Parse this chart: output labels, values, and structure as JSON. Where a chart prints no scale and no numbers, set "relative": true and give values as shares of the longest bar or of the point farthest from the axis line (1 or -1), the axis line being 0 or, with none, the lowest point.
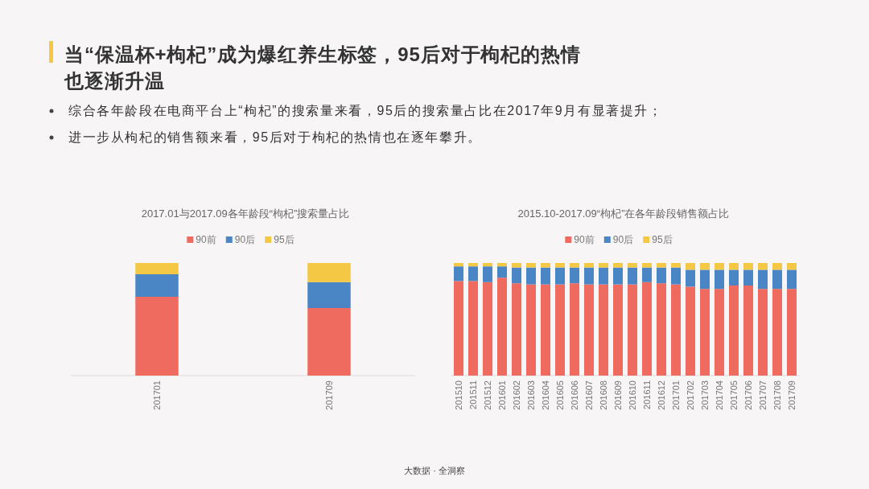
{
  "chart_data": [
    {
      "type": "other",
      "title": "当“保温杯+枸杞”成为爆红养生标签，95后对于枸杞的热情也逐渐升温",
      "annotations": [
        "综合各年龄段在电商平台上“枸杞”的搜索量来看，95后的搜索量占比在2017年9月有显著提升；",
        "进一步从枸杞的销售额来看，95后对于枸杞的热情也在逐年攀升。",
        "大数据 · 全洞察"
      ]
    },
    {
      "type": "bar",
      "title": "2017.01与2017.09各年龄段“枸杞”搜索量占比",
      "categories": [
        "201701",
        "201709"
      ],
      "stacked": true,
      "relative": true,
      "legend": "top",
      "series": [
        {
          "name": "90前",
          "color": "#ef6b5f",
          "values": [
            0.7,
            0.6
          ]
        },
        {
          "name": "90后",
          "color": "#4a86c5",
          "values": [
            0.2,
            0.23
          ]
        },
        {
          "name": "95后",
          "color": "#f4c844",
          "values": [
            0.1,
            0.17
          ]
        }
      ]
    },
    {
      "type": "bar",
      "title": "2015.10-2017.09“枸杞”在各年龄段销售额占比",
      "categories": [
        "201510",
        "201511",
        "201512",
        "201601",
        "201602",
        "201603",
        "201604",
        "201605",
        "201606",
        "201607",
        "201608",
        "201609",
        "201610",
        "201611",
        "201612",
        "201701",
        "201702",
        "201703",
        "201704",
        "201705",
        "201706",
        "201707",
        "201708",
        "201709"
      ],
      "stacked": true,
      "relative": true,
      "legend": "top",
      "series": [
        {
          "name": "90前",
          "color": "#ef6b5f",
          "values": [
            0.84,
            0.84,
            0.83,
            0.87,
            0.82,
            0.81,
            0.81,
            0.81,
            0.82,
            0.81,
            0.81,
            0.81,
            0.81,
            0.83,
            0.82,
            0.81,
            0.79,
            0.77,
            0.77,
            0.8,
            0.8,
            0.77,
            0.77,
            0.77
          ]
        },
        {
          "name": "90后",
          "color": "#4a86c5",
          "values": [
            0.13,
            0.13,
            0.14,
            0.1,
            0.14,
            0.15,
            0.15,
            0.15,
            0.14,
            0.15,
            0.15,
            0.15,
            0.15,
            0.13,
            0.14,
            0.15,
            0.15,
            0.17,
            0.17,
            0.14,
            0.14,
            0.17,
            0.17,
            0.17
          ]
        },
        {
          "name": "95后",
          "color": "#f4c844",
          "values": [
            0.03,
            0.03,
            0.03,
            0.03,
            0.04,
            0.04,
            0.04,
            0.04,
            0.04,
            0.04,
            0.04,
            0.04,
            0.04,
            0.04,
            0.04,
            0.04,
            0.06,
            0.06,
            0.06,
            0.06,
            0.06,
            0.06,
            0.06,
            0.06
          ]
        }
      ]
    }
  ]
}
